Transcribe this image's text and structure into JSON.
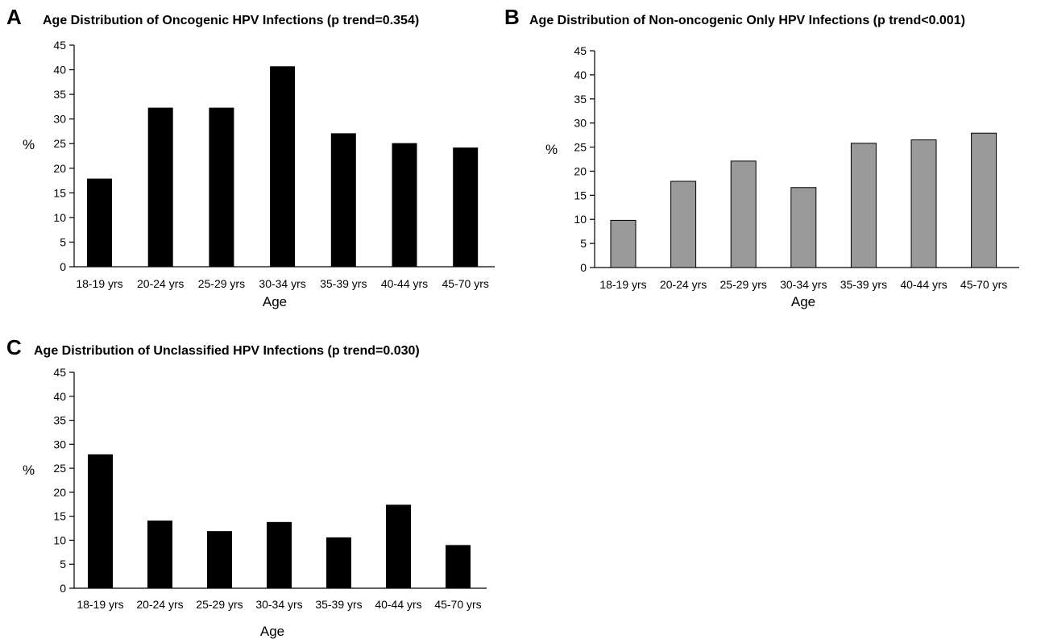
{
  "chart_data": [
    {
      "panel": "A",
      "type": "bar",
      "title": "Age Distribution of Oncogenic HPV Infections (p trend=0.354)",
      "xlabel": "Age",
      "ylabel": "%",
      "ylim": [
        0,
        45
      ],
      "yticks": [
        "0",
        "5",
        "10",
        "15",
        "20",
        "25",
        "30",
        "35",
        "40",
        "45"
      ],
      "categories": [
        "18-19 yrs",
        "20-24 yrs",
        "25-29 yrs",
        "30-34 yrs",
        "35-39 yrs",
        "40-44 yrs",
        "45-70 yrs"
      ],
      "values": [
        17.9,
        32.3,
        32.3,
        40.7,
        27.1,
        25.1,
        24.2
      ],
      "bar_color": "#000000",
      "grid": false
    },
    {
      "panel": "B",
      "type": "bar",
      "title": "Age Distribution of Non-oncogenic Only HPV Infections (p trend<0.001)",
      "xlabel": "Age",
      "ylabel": "%",
      "ylim": [
        0,
        45
      ],
      "yticks": [
        "0",
        "5",
        "10",
        "15",
        "20",
        "25",
        "30",
        "35",
        "40",
        "45"
      ],
      "categories": [
        "18-19 yrs",
        "20-24 yrs",
        "25-29 yrs",
        "30-34 yrs",
        "35-39 yrs",
        "40-44 yrs",
        "45-70 yrs"
      ],
      "values": [
        9.8,
        17.9,
        22.1,
        16.6,
        25.8,
        26.5,
        27.9
      ],
      "bar_color": "#9a9a9a",
      "grid": false
    },
    {
      "panel": "C",
      "type": "bar",
      "title": "Age Distribution of Unclassified HPV Infections (p trend=0.030)",
      "xlabel": "Age",
      "ylabel": "%",
      "ylim": [
        0,
        45
      ],
      "yticks": [
        "0",
        "5",
        "10",
        "15",
        "20",
        "25",
        "30",
        "35",
        "40",
        "45"
      ],
      "categories": [
        "18-19 yrs",
        "20-24 yrs",
        "25-29 yrs",
        "30-34 yrs",
        "35-39 yrs",
        "40-44 yrs",
        "45-70 yrs"
      ],
      "values": [
        27.9,
        14.1,
        11.9,
        13.8,
        10.6,
        17.4,
        9.0
      ],
      "bar_color": "#000000",
      "grid": false
    }
  ]
}
